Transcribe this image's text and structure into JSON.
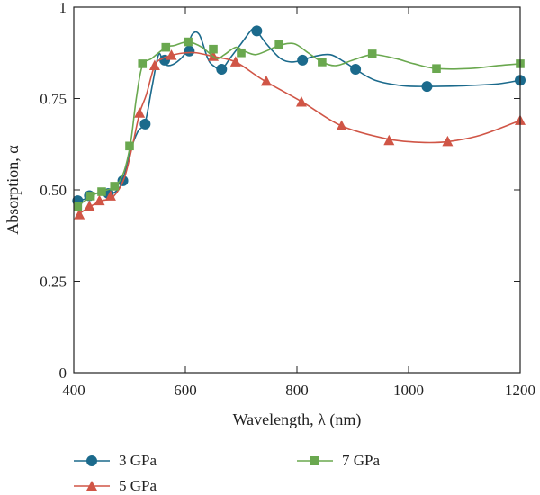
{
  "chart_data": {
    "type": "line",
    "title": "",
    "xlabel": "Wavelength, λ (nm)",
    "ylabel": "Absorption, α",
    "xlim": [
      400,
      1200
    ],
    "ylim": [
      0,
      1
    ],
    "x_ticks": [
      400,
      600,
      800,
      1000,
      1200
    ],
    "x_tick_labels": [
      "400",
      "600",
      "800",
      "1000",
      "1200"
    ],
    "y_ticks": [
      0,
      0.25,
      0.5,
      0.75,
      1
    ],
    "y_tick_labels": [
      "0",
      "0.25",
      "0.50",
      "0.75",
      "1"
    ],
    "grid": false,
    "legend_position": "bottom",
    "series": [
      {
        "name": "3 GPa",
        "color": "#1b6a8c",
        "marker": "circle",
        "curve": [
          [
            405,
            0.47
          ],
          [
            420,
            0.475
          ],
          [
            440,
            0.49
          ],
          [
            460,
            0.49
          ],
          [
            475,
            0.495
          ],
          [
            488,
            0.525
          ],
          [
            500,
            0.6
          ],
          [
            515,
            0.66
          ],
          [
            528,
            0.685
          ],
          [
            540,
            0.78
          ],
          [
            552,
            0.87
          ],
          [
            560,
            0.85
          ],
          [
            570,
            0.84
          ],
          [
            585,
            0.85
          ],
          [
            600,
            0.875
          ],
          [
            612,
            0.925
          ],
          [
            625,
            0.925
          ],
          [
            640,
            0.86
          ],
          [
            650,
            0.84
          ],
          [
            665,
            0.83
          ],
          [
            680,
            0.86
          ],
          [
            700,
            0.9
          ],
          [
            720,
            0.94
          ],
          [
            728,
            0.935
          ],
          [
            745,
            0.9
          ],
          [
            770,
            0.86
          ],
          [
            790,
            0.85
          ],
          [
            810,
            0.855
          ],
          [
            830,
            0.865
          ],
          [
            860,
            0.87
          ],
          [
            885,
            0.85
          ],
          [
            905,
            0.83
          ],
          [
            940,
            0.8
          ],
          [
            990,
            0.785
          ],
          [
            1035,
            0.783
          ],
          [
            1100,
            0.785
          ],
          [
            1160,
            0.79
          ],
          [
            1200,
            0.8
          ]
        ],
        "markers": [
          [
            407,
            0.47
          ],
          [
            428,
            0.484
          ],
          [
            462,
            0.49
          ],
          [
            488,
            0.525
          ],
          [
            528,
            0.68
          ],
          [
            563,
            0.855
          ],
          [
            607,
            0.88
          ],
          [
            665,
            0.83
          ],
          [
            728,
            0.935
          ],
          [
            810,
            0.855
          ],
          [
            905,
            0.83
          ],
          [
            1033,
            0.783
          ],
          [
            1200,
            0.8
          ]
        ]
      },
      {
        "name": "5 GPa",
        "color": "#d05546",
        "marker": "triangle",
        "curve": [
          [
            405,
            0.43
          ],
          [
            430,
            0.455
          ],
          [
            450,
            0.47
          ],
          [
            470,
            0.48
          ],
          [
            490,
            0.53
          ],
          [
            505,
            0.62
          ],
          [
            518,
            0.71
          ],
          [
            530,
            0.76
          ],
          [
            545,
            0.84
          ],
          [
            560,
            0.86
          ],
          [
            580,
            0.87
          ],
          [
            600,
            0.875
          ],
          [
            620,
            0.875
          ],
          [
            650,
            0.865
          ],
          [
            690,
            0.85
          ],
          [
            740,
            0.8
          ],
          [
            810,
            0.74
          ],
          [
            880,
            0.675
          ],
          [
            960,
            0.64
          ],
          [
            1020,
            0.63
          ],
          [
            1070,
            0.632
          ],
          [
            1130,
            0.65
          ],
          [
            1200,
            0.69
          ]
        ],
        "markers": [
          [
            410,
            0.432
          ],
          [
            428,
            0.455
          ],
          [
            446,
            0.47
          ],
          [
            466,
            0.483
          ],
          [
            518,
            0.71
          ],
          [
            545,
            0.84
          ],
          [
            575,
            0.868
          ],
          [
            650,
            0.865
          ],
          [
            690,
            0.85
          ],
          [
            745,
            0.797
          ],
          [
            808,
            0.74
          ],
          [
            880,
            0.675
          ],
          [
            965,
            0.635
          ],
          [
            1070,
            0.632
          ],
          [
            1200,
            0.69
          ]
        ]
      },
      {
        "name": "7 GPa",
        "color": "#6aa84f",
        "marker": "square",
        "curve": [
          [
            405,
            0.455
          ],
          [
            420,
            0.47
          ],
          [
            440,
            0.49
          ],
          [
            460,
            0.5
          ],
          [
            475,
            0.51
          ],
          [
            490,
            0.55
          ],
          [
            502,
            0.63
          ],
          [
            512,
            0.75
          ],
          [
            523,
            0.84
          ],
          [
            540,
            0.86
          ],
          [
            565,
            0.89
          ],
          [
            580,
            0.895
          ],
          [
            605,
            0.905
          ],
          [
            630,
            0.89
          ],
          [
            655,
            0.86
          ],
          [
            670,
            0.87
          ],
          [
            690,
            0.89
          ],
          [
            705,
            0.88
          ],
          [
            725,
            0.87
          ],
          [
            745,
            0.88
          ],
          [
            768,
            0.895
          ],
          [
            795,
            0.9
          ],
          [
            820,
            0.875
          ],
          [
            845,
            0.85
          ],
          [
            870,
            0.84
          ],
          [
            900,
            0.855
          ],
          [
            935,
            0.87
          ],
          [
            975,
            0.86
          ],
          [
            1010,
            0.845
          ],
          [
            1050,
            0.832
          ],
          [
            1110,
            0.832
          ],
          [
            1160,
            0.84
          ],
          [
            1200,
            0.845
          ]
        ],
        "markers": [
          [
            407,
            0.455
          ],
          [
            430,
            0.483
          ],
          [
            450,
            0.495
          ],
          [
            473,
            0.51
          ],
          [
            500,
            0.62
          ],
          [
            523,
            0.845
          ],
          [
            565,
            0.89
          ],
          [
            605,
            0.905
          ],
          [
            650,
            0.885
          ],
          [
            700,
            0.875
          ],
          [
            768,
            0.897
          ],
          [
            845,
            0.85
          ],
          [
            935,
            0.872
          ],
          [
            1050,
            0.832
          ],
          [
            1200,
            0.845
          ]
        ]
      }
    ]
  }
}
